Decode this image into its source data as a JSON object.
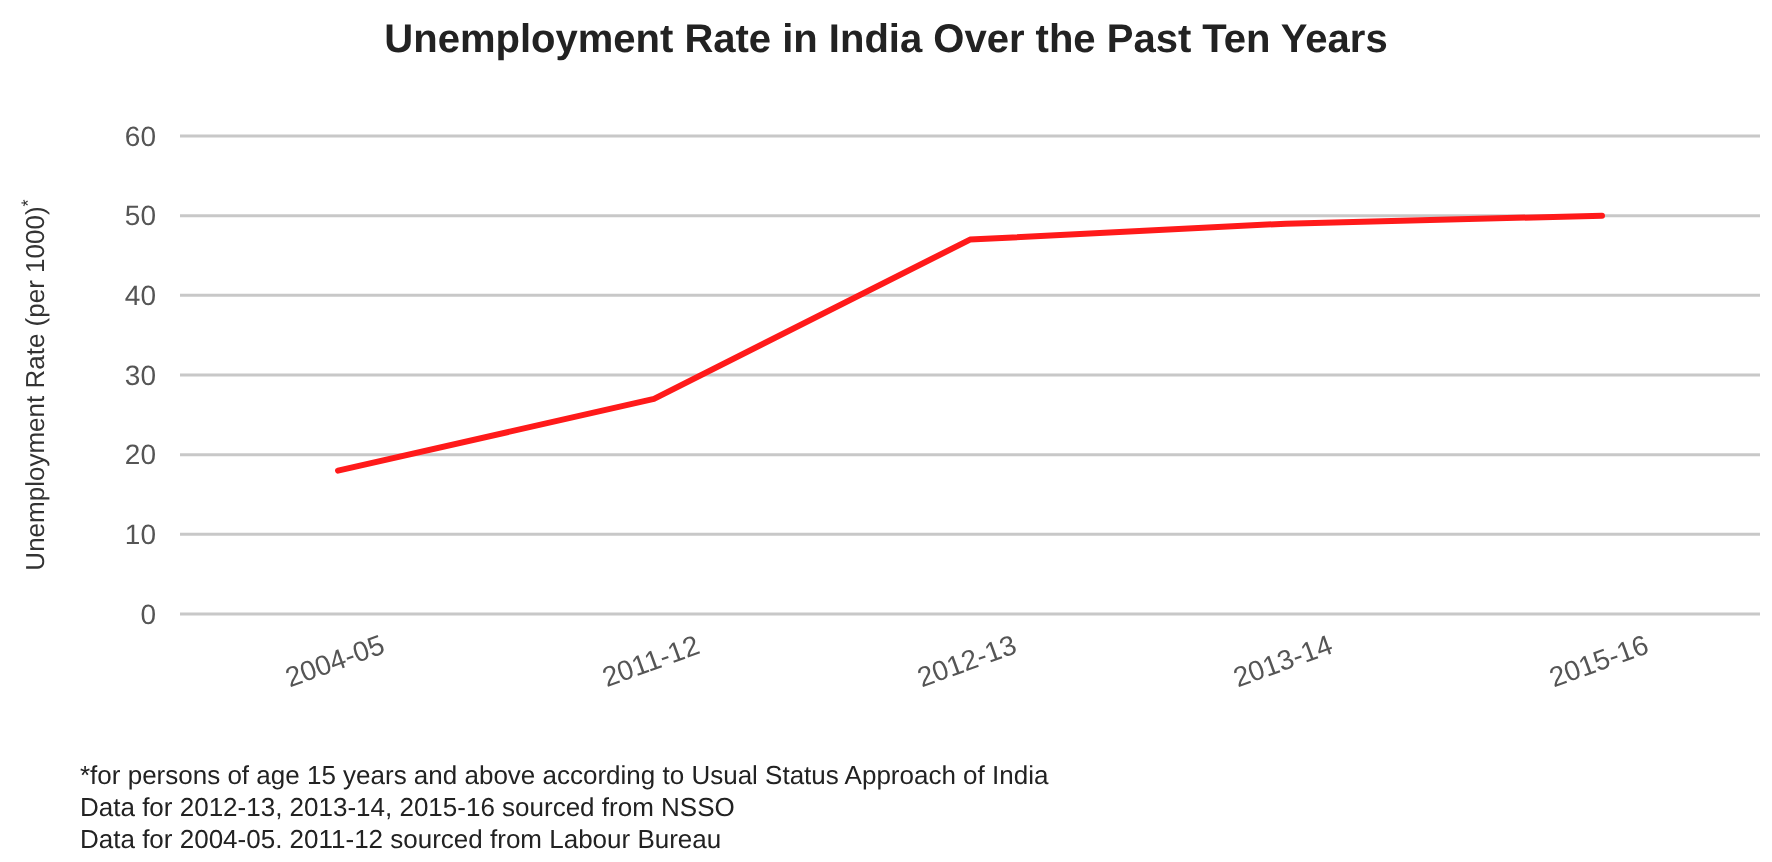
{
  "chart_data": {
    "type": "line",
    "title": "Unemployment Rate in India Over the Past Ten Years",
    "ylabel": "Unemployment Rate (per 1000)$^{*}$",
    "categories": [
      "2004-05",
      "2011-12",
      "2012-13",
      "2013-14",
      "2015-16"
    ],
    "series": [
      {
        "color": "#ff1a1a",
        "values": [
          18,
          27,
          47,
          49,
          50
        ]
      }
    ],
    "ylim": [
      0,
      60
    ],
    "yticks": [
      0,
      10,
      20,
      30,
      40,
      50,
      60
    ],
    "grid": "y",
    "marker": "none",
    "line_style": "solid",
    "annotations": [
      "*for persons of age 15 years and above according to Usual Status Approach of India",
      "Data for 2012-13, 2013-14, 2015-16 sourced from NSSO",
      "Data for 2004-05. 2011-12 sourced from Labour Bureau"
    ]
  }
}
